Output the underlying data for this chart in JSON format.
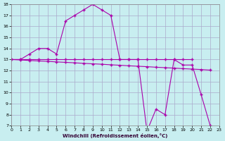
{
  "background_color": "#c8eef0",
  "grid_color": "#aaaacc",
  "line_color": "#aa00aa",
  "xlim": [
    0,
    23
  ],
  "ylim": [
    7,
    18
  ],
  "xticks": [
    0,
    1,
    2,
    3,
    4,
    5,
    6,
    7,
    8,
    9,
    10,
    11,
    12,
    13,
    14,
    15,
    16,
    17,
    18,
    19,
    20,
    21,
    22,
    23
  ],
  "yticks": [
    7,
    8,
    9,
    10,
    11,
    12,
    13,
    14,
    15,
    16,
    17,
    18
  ],
  "xlabel": "Windchill (Refroidissement éolien,°C)",
  "s1_x": [
    0,
    1,
    2,
    3,
    4,
    5,
    6,
    7,
    8,
    9,
    10,
    11,
    12,
    13,
    14,
    15,
    16,
    17,
    18,
    19,
    20,
    21,
    22
  ],
  "s1_y": [
    13,
    13,
    13.5,
    14,
    14,
    13.5,
    16.5,
    17,
    17.5,
    18,
    17.5,
    17,
    13,
    13,
    13,
    6.5,
    8.5,
    8.0,
    13,
    12.5,
    12.5,
    9.8,
    7.0
  ],
  "s2_x": [
    0,
    1,
    2,
    3,
    4,
    5,
    6,
    7,
    8,
    9,
    10,
    11,
    12,
    13,
    14,
    15,
    16,
    17,
    18,
    19,
    20
  ],
  "s2_y": [
    13,
    13,
    13,
    13,
    13,
    13,
    13,
    13,
    13,
    13,
    13,
    13,
    13,
    13,
    13,
    13,
    13,
    13,
    13,
    13,
    13
  ],
  "s3_x": [
    0,
    1,
    2,
    3,
    4,
    5,
    6,
    7,
    8,
    9,
    10,
    11,
    12,
    13,
    14,
    15,
    16,
    17,
    18,
    19,
    20,
    21,
    22
  ],
  "s3_y": [
    13,
    12.96,
    12.91,
    12.87,
    12.83,
    12.78,
    12.74,
    12.7,
    12.65,
    12.61,
    12.57,
    12.52,
    12.48,
    12.43,
    12.39,
    12.35,
    12.3,
    12.26,
    12.22,
    12.17,
    12.13,
    12.09,
    12.04
  ]
}
